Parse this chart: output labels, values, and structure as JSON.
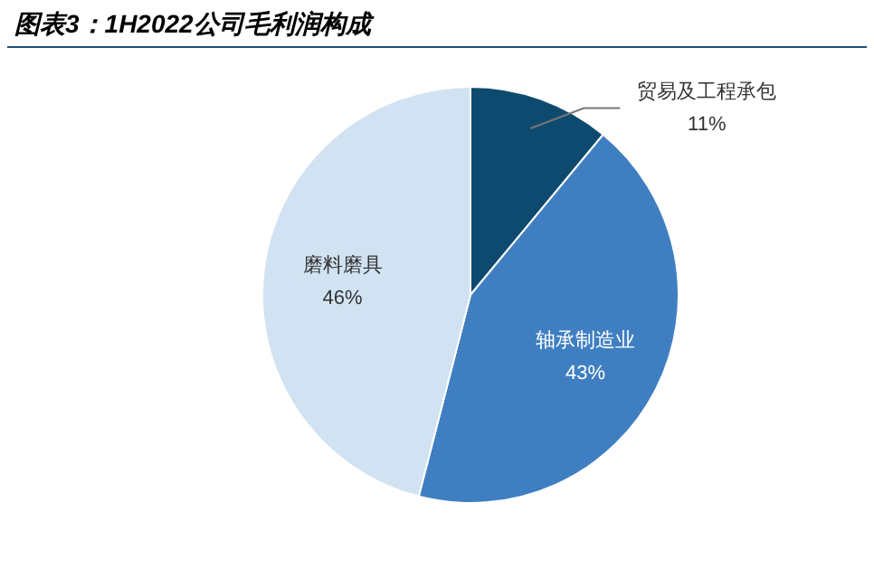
{
  "chart_data": {
    "type": "pie",
    "title": "图表3：1H2022公司毛利润构成",
    "categories": [
      "贸易及工程承包",
      "轴承制造业",
      "磨料磨具"
    ],
    "values": [
      11,
      43,
      46
    ],
    "colors": [
      "#0e4a6f",
      "#3f7fc1",
      "#d1e2f2"
    ],
    "value_labels": [
      "11%",
      "43%",
      "46%"
    ]
  }
}
